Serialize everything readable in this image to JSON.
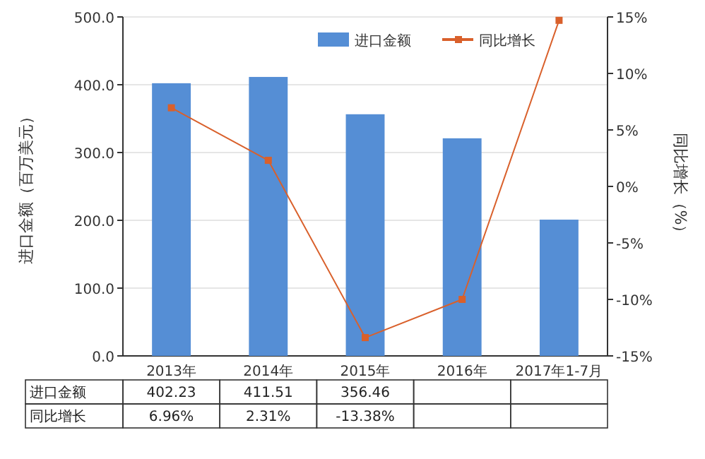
{
  "chart_data": {
    "type": "bar",
    "ylabel": "进口金额（百万美元）",
    "y2label": "同比增长（%）",
    "categories": [
      "2013年",
      "2014年",
      "2015年",
      "2016年",
      "2017年1-7月"
    ],
    "series": [
      {
        "name": "进口金额",
        "color": "#558ed5",
        "values": [
          402.23,
          411.51,
          356.46,
          321,
          201
        ],
        "value_labels": [
          "402.23",
          "411.51",
          "356.46",
          null,
          null
        ]
      },
      {
        "name": "同比增长",
        "type": "line",
        "axis": "y2",
        "color": "#d9602b",
        "marker": "square",
        "values": [
          6.96,
          2.31,
          -13.38,
          -10.0,
          14.7
        ],
        "value_labels": [
          "6.96%",
          "2.31%",
          "-13.38%",
          null,
          null
        ]
      }
    ],
    "ylim": [
      0,
      500
    ],
    "yticks": [
      {
        "value": 0,
        "label": "0.0"
      },
      {
        "value": 100,
        "label": "100.0"
      },
      {
        "value": 200,
        "label": "200.0"
      },
      {
        "value": 300,
        "label": "300.0"
      },
      {
        "value": 400,
        "label": "400.0"
      },
      {
        "value": 500,
        "label": "500.0"
      }
    ],
    "y2lim": [
      -15,
      15
    ],
    "y2ticks": [
      {
        "value": -15,
        "label": "-15%"
      },
      {
        "value": -10,
        "label": "-10%"
      },
      {
        "value": -5,
        "label": "-5%"
      },
      {
        "value": 0,
        "label": "0%"
      },
      {
        "value": 5,
        "label": "5%"
      },
      {
        "value": 10,
        "label": "10%"
      },
      {
        "value": 15,
        "label": "15%"
      }
    ],
    "grid": "y",
    "legend": "top right"
  }
}
